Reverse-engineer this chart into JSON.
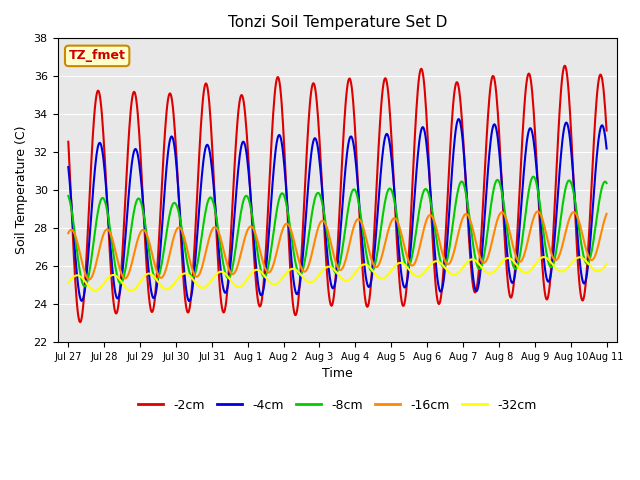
{
  "title": "Tonzi Soil Temperature Set D",
  "xlabel": "Time",
  "ylabel": "Soil Temperature (C)",
  "ylim": [
    22,
    38
  ],
  "annotation": "TZ_fmet",
  "series_colors": [
    "#dd0000",
    "#0000dd",
    "#00cc00",
    "#ff8800",
    "#ffff00"
  ],
  "series_lw": [
    1.5,
    1.5,
    1.5,
    1.5,
    1.5
  ],
  "legend_labels": [
    "-2cm",
    "-4cm",
    "-8cm",
    "-16cm",
    "-32cm"
  ],
  "bg_color": "#e8e8e8",
  "fig_bg": "#ffffff",
  "xtick_labels": [
    "Jul 27",
    "Jul 28",
    "Jul 29",
    "Jul 30",
    "Jul 31",
    "Aug 1",
    "Aug 2",
    "Aug 3",
    "Aug 4",
    "Aug 5",
    "Aug 6",
    "Aug 7",
    "Aug 8",
    "Aug 9",
    "Aug 10",
    "Aug 11"
  ],
  "yticks": [
    22,
    24,
    26,
    28,
    30,
    32,
    34,
    36,
    38
  ]
}
